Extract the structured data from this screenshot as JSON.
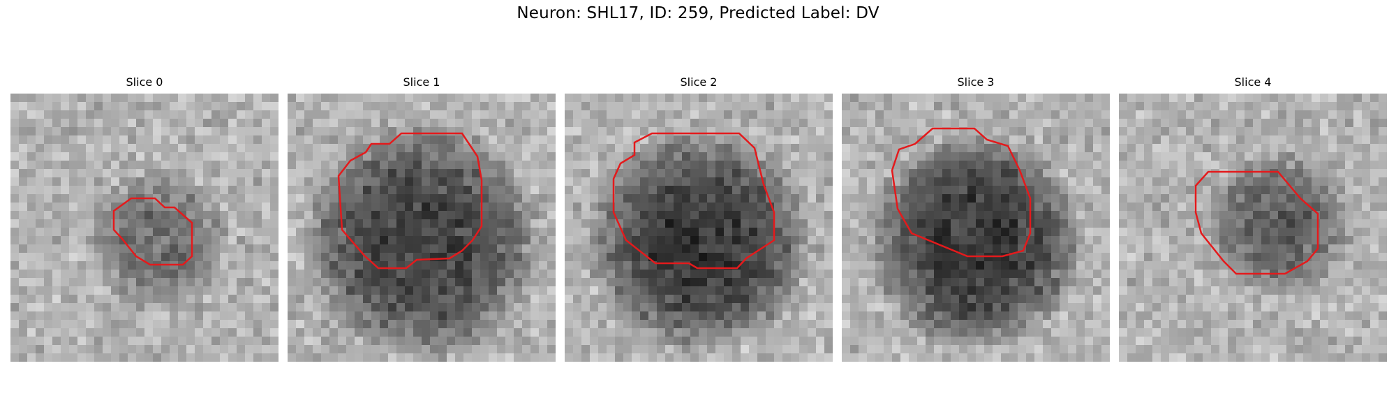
{
  "figure": {
    "title": "Neuron: SHL17, ID: 259, Predicted Label: DV",
    "contour_color": "#e41a1c"
  },
  "panels": [
    {
      "title": "Slice 0",
      "darkness": 0.35,
      "blob_radius": 0.22,
      "blob_cx": 0.55,
      "blob_cy": 0.55
    },
    {
      "title": "Slice 1",
      "darkness": 0.6,
      "blob_radius": 0.36,
      "blob_cx": 0.5,
      "blob_cy": 0.55
    },
    {
      "title": "Slice 2",
      "darkness": 0.65,
      "blob_radius": 0.34,
      "blob_cx": 0.5,
      "blob_cy": 0.55
    },
    {
      "title": "Slice 3",
      "darkness": 0.65,
      "blob_radius": 0.33,
      "blob_cx": 0.5,
      "blob_cy": 0.55
    },
    {
      "title": "Slice 4",
      "darkness": 0.45,
      "blob_radius": 0.22,
      "blob_cx": 0.6,
      "blob_cy": 0.48
    }
  ]
}
